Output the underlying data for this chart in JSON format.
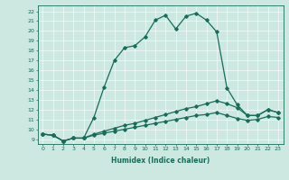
{
  "xlabel": "Humidex (Indice chaleur)",
  "background_color": "#cce8e0",
  "line_color": "#1a6b5a",
  "xlim": [
    -0.5,
    23.5
  ],
  "ylim": [
    8.5,
    22.6
  ],
  "yticks": [
    9,
    10,
    11,
    12,
    13,
    14,
    15,
    16,
    17,
    18,
    19,
    20,
    21,
    22
  ],
  "xticks": [
    0,
    1,
    2,
    3,
    4,
    5,
    6,
    7,
    8,
    9,
    10,
    11,
    12,
    13,
    14,
    15,
    16,
    17,
    18,
    19,
    20,
    21,
    22,
    23
  ],
  "series1_x": [
    0,
    1,
    2,
    3,
    4,
    5,
    6,
    7,
    8,
    9,
    10,
    11,
    12,
    13,
    14,
    15,
    16,
    17,
    18,
    19,
    20,
    21,
    22,
    23
  ],
  "series1_y": [
    9.5,
    9.4,
    8.8,
    9.1,
    9.1,
    11.2,
    14.3,
    17.0,
    18.3,
    18.5,
    19.4,
    21.1,
    21.6,
    20.2,
    21.5,
    21.8,
    21.1,
    19.9,
    14.2,
    12.5,
    11.4,
    11.4,
    12.0,
    11.7
  ],
  "series2_x": [
    0,
    1,
    2,
    3,
    4,
    5,
    6,
    7,
    8,
    9,
    10,
    11,
    12,
    13,
    14,
    15,
    16,
    17,
    18,
    19,
    20,
    21,
    22,
    23
  ],
  "series2_y": [
    9.5,
    9.4,
    8.8,
    9.1,
    9.1,
    9.5,
    9.8,
    10.1,
    10.4,
    10.6,
    10.9,
    11.2,
    11.5,
    11.8,
    12.1,
    12.3,
    12.6,
    12.9,
    12.6,
    12.2,
    11.4,
    11.4,
    12.0,
    11.7
  ],
  "series3_x": [
    0,
    1,
    2,
    3,
    4,
    5,
    6,
    7,
    8,
    9,
    10,
    11,
    12,
    13,
    14,
    15,
    16,
    17,
    18,
    19,
    20,
    21,
    22,
    23
  ],
  "series3_y": [
    9.5,
    9.4,
    8.8,
    9.1,
    9.1,
    9.4,
    9.6,
    9.8,
    10.0,
    10.2,
    10.4,
    10.6,
    10.8,
    11.0,
    11.2,
    11.4,
    11.5,
    11.7,
    11.4,
    11.1,
    10.9,
    11.0,
    11.3,
    11.2
  ]
}
